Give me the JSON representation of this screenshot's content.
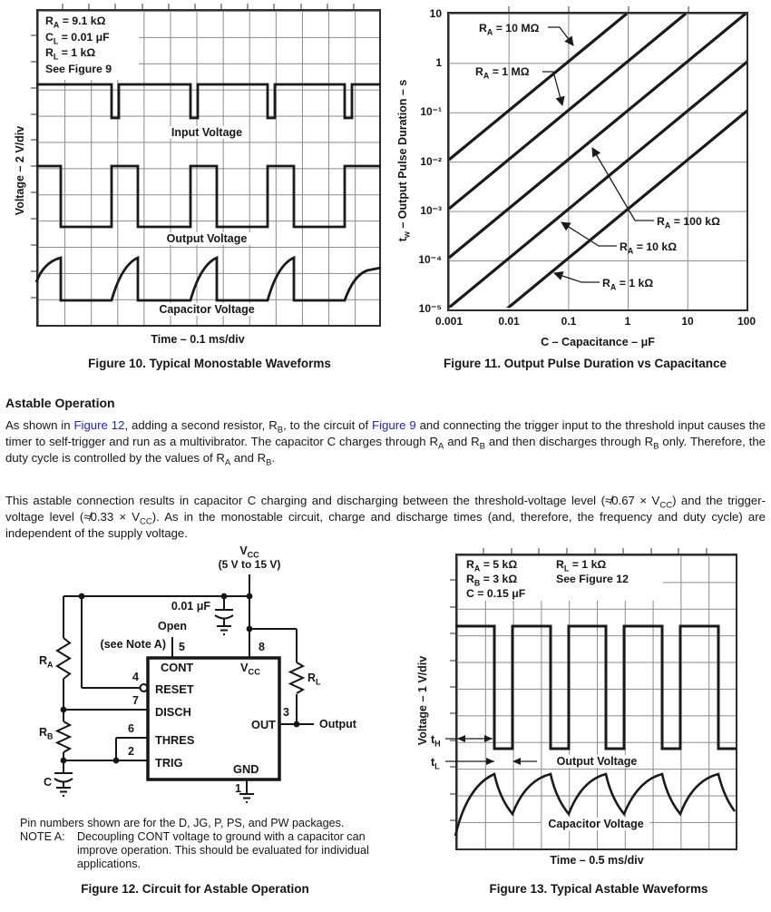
{
  "colors": {
    "link_blue": "#2020dd",
    "grid_gray": "#8a8a8a",
    "trace_black": "#1a1a1a"
  },
  "fig10": {
    "caption": "Figure 10. Typical Monostable Waveforms",
    "xlabel": "Time – 0.1 ms/div",
    "ylabel": "Voltage – 2 V/div",
    "annotations": [
      "R~A~ = 9.1 kΩ",
      "C~L~ = 0.01 μF",
      "R~L~ = 1 kΩ",
      "See Figure 9"
    ],
    "trace_labels": [
      "Input Voltage",
      "Output Voltage",
      "Capacitor Voltage"
    ]
  },
  "fig11": {
    "caption": "Figure 11. Output Pulse Duration vs Capacitance",
    "xlabel": "C – Capacitance – μF",
    "ylabel": "t~w~ – Output Pulse Duration – s",
    "yticks": [
      "10",
      "1",
      "10⁻¹",
      "10⁻²",
      "10⁻³",
      "10⁻⁴",
      "10⁻⁵"
    ],
    "xticks": [
      "0.001",
      "0.01",
      "0.1",
      "1",
      "10",
      "100"
    ],
    "series_labels": [
      "R~A~ = 10 MΩ",
      "R~A~ = 1 MΩ",
      "R~A~ = 100 kΩ",
      "R~A~ = 10 kΩ",
      "R~A~ = 1 kΩ"
    ]
  },
  "section": {
    "heading": "Astable Operation",
    "p1": "As shown in [[Figure 12]], adding a second resistor, R~B~, to the circuit of [[Figure 9]] and connecting the trigger input to the threshold input causes the timer to self-trigger and run as a multivibrator. The capacitor C charges through R~A~ and R~B~ and then discharges through R~B~ only. Therefore, the duty cycle is controlled by the values of R~A~ and R~B~.",
    "p2": "This astable connection results in capacitor C charging and discharging between the threshold-voltage level (≉0.67 × V~CC~) and the trigger-voltage level (≉0.33 × V~CC~). As in the monostable circuit, charge and discharge times (and, therefore, the frequency and duty cycle) are independent of the supply voltage."
  },
  "fig12": {
    "caption": "Figure 12. Circuit for Astable Operation",
    "vcc_title": "V~CC~",
    "vcc_range": "(5 V to 15 V)",
    "cap1_label": "0.01 μF",
    "open_label": "Open",
    "note_ref": "(see Note A)",
    "ra": "R~A~",
    "rb": "R~B~",
    "rl": "R~L~",
    "c": "C",
    "output_label": "Output",
    "pins": {
      "p1": "1",
      "p2": "2",
      "p3": "3",
      "p4": "4",
      "p5": "5",
      "p6": "6",
      "p7": "7",
      "p8": "8"
    },
    "pin_names": {
      "cont": "CONT",
      "vcc": "V~CC~",
      "reset": "RESET",
      "disch": "DISCH",
      "thres": "THRES",
      "trig": "TRIG",
      "out": "OUT",
      "gnd": "GND"
    },
    "note_pins": "Pin numbers shown are for the D, JG, P, PS, and PW packages.",
    "note_a_label": "NOTE A:",
    "note_a_text": "Decoupling CONT voltage to ground with a capacitor can improve operation. This should be evaluated for individual applications."
  },
  "fig13": {
    "caption": "Figure 13. Typical Astable Waveforms",
    "xlabel": "Time – 0.5 ms/div",
    "ylabel": "Voltage – 1 V/div",
    "ann_col1": [
      "R~A~ = 5 kΩ",
      "R~B~ = 3 kΩ",
      "C = 0.15 μF"
    ],
    "ann_col2": [
      "R~L~ = 1 kΩ",
      "See Figure 12"
    ],
    "th": "t~H~",
    "tl": "t~L~",
    "trace_labels": [
      "Output Voltage",
      "Capacitor Voltage"
    ]
  },
  "chart_data": [
    {
      "figure": "Figure 10",
      "type": "line",
      "title": "Typical Monostable Waveforms",
      "xlabel": "Time – 0.1 ms/div",
      "ylabel": "Voltage – 2 V/div",
      "conditions": [
        "RA = 9.1 kΩ",
        "CL = 0.01 μF",
        "RL = 1 kΩ",
        "See Figure 9"
      ],
      "traces": [
        {
          "name": "Input Voltage",
          "description": "high level with narrow negative trigger pulses (~2 V deep) every ~0.23 ms"
        },
        {
          "name": "Output Voltage",
          "description": "goes high at each trigger for tw ≈ 0.1 ms (≈1.1 RA C), then low"
        },
        {
          "name": "Capacitor Voltage",
          "description": "exponential charge during output high, rapid discharge at end of pulse"
        }
      ]
    },
    {
      "figure": "Figure 11",
      "type": "line",
      "log_log": true,
      "title": "Output Pulse Duration vs Capacitance",
      "xlabel": "C – Capacitance – μF",
      "xlim": [
        0.001,
        100
      ],
      "ylabel": "tw – Output Pulse Duration – s",
      "ylim": [
        1e-05,
        10
      ],
      "relation": "tw = 1.1 × RA × C (straight lines of slope 1 on log-log axes)",
      "grid": true,
      "legend_position": "labels with arrows on plot",
      "series": [
        {
          "name": "RA = 10 MΩ",
          "points": [
            [
              0.001,
              0.011
            ],
            [
              0.91,
              10
            ]
          ]
        },
        {
          "name": "RA = 1 MΩ",
          "points": [
            [
              0.001,
              0.0011
            ],
            [
              9.1,
              10
            ]
          ]
        },
        {
          "name": "RA = 100 kΩ",
          "points": [
            [
              0.001,
              0.00011
            ],
            [
              91,
              10
            ]
          ]
        },
        {
          "name": "RA = 10 kΩ",
          "points": [
            [
              0.001,
              1.1e-05
            ],
            [
              100,
              1.1
            ]
          ]
        },
        {
          "name": "RA = 1 kΩ",
          "points": [
            [
              0.0091,
              1e-05
            ],
            [
              100,
              0.11
            ]
          ]
        }
      ]
    },
    {
      "figure": "Figure 13",
      "type": "line",
      "title": "Typical Astable Waveforms",
      "xlabel": "Time – 0.5 ms/div",
      "ylabel": "Voltage – 1 V/div",
      "conditions": [
        "RA = 5 kΩ",
        "RB = 3 kΩ",
        "C = 0.15 μF",
        "RL = 1 kΩ",
        "See Figure 12"
      ],
      "traces": [
        {
          "name": "Output Voltage",
          "description": "square wave, tH ≈ 0.7 ms high, tL ≈ 0.3 ms low, period ≈ 1 ms"
        },
        {
          "name": "Capacitor Voltage",
          "description": "charges (concave-down) during tH, discharges during tL between trigger and threshold levels"
        }
      ]
    }
  ]
}
